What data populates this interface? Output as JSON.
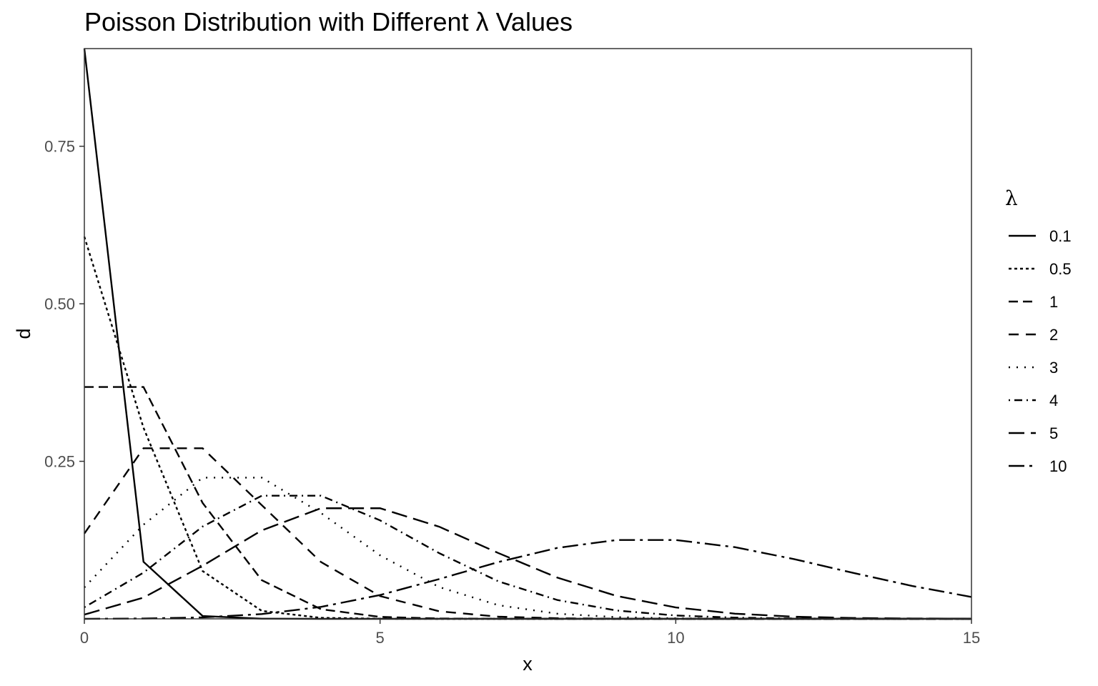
{
  "chart_data": {
    "type": "line",
    "title": "Poisson Distribution with Different λ Values",
    "xlabel": "x",
    "ylabel": "d",
    "xlim": [
      0,
      15
    ],
    "ylim": [
      0,
      0.905
    ],
    "x_ticks": [
      0,
      5,
      10,
      15
    ],
    "x_tick_labels": [
      "0",
      "5",
      "10",
      "15"
    ],
    "y_ticks": [
      0.25,
      0.5,
      0.75
    ],
    "y_tick_labels": [
      "0.25",
      "0.50",
      "0.75"
    ],
    "grid": false,
    "legend": {
      "title": "λ",
      "position": "right"
    },
    "x": [
      0,
      1,
      2,
      3,
      4,
      5,
      6,
      7,
      8,
      9,
      10,
      11,
      12,
      13,
      14,
      15
    ],
    "series": [
      {
        "name": "0.1",
        "linetype": "solid",
        "values": [
          0.9048,
          0.0905,
          0.0045,
          0.0002,
          0.0,
          0.0,
          0.0,
          0.0,
          0.0,
          0.0,
          0.0,
          0.0,
          0.0,
          0.0,
          0.0,
          0.0
        ]
      },
      {
        "name": "0.5",
        "linetype": "dashed",
        "values": [
          0.6065,
          0.3033,
          0.0758,
          0.0126,
          0.0016,
          0.0002,
          0.0,
          0.0,
          0.0,
          0.0,
          0.0,
          0.0,
          0.0,
          0.0,
          0.0,
          0.0
        ]
      },
      {
        "name": "1",
        "linetype": "dotted",
        "values": [
          0.3679,
          0.3679,
          0.1839,
          0.0613,
          0.0153,
          0.0031,
          0.0005,
          0.0001,
          0.0,
          0.0,
          0.0,
          0.0,
          0.0,
          0.0,
          0.0,
          0.0
        ]
      },
      {
        "name": "2",
        "linetype": "dotdash",
        "values": [
          0.1353,
          0.2707,
          0.2707,
          0.1804,
          0.0902,
          0.0361,
          0.012,
          0.0034,
          0.0009,
          0.0002,
          0.0,
          0.0,
          0.0,
          0.0,
          0.0,
          0.0
        ]
      },
      {
        "name": "3",
        "linetype": "longdash",
        "values": [
          0.0498,
          0.1494,
          0.224,
          0.224,
          0.168,
          0.1008,
          0.0504,
          0.0216,
          0.0081,
          0.0027,
          0.0008,
          0.0002,
          0.0001,
          0.0,
          0.0,
          0.0
        ]
      },
      {
        "name": "4",
        "linetype": "twodash",
        "values": [
          0.0183,
          0.0733,
          0.1465,
          0.1954,
          0.1954,
          0.1563,
          0.1042,
          0.0595,
          0.0298,
          0.0132,
          0.0053,
          0.0019,
          0.0006,
          0.0002,
          0.0001,
          0.0
        ]
      },
      {
        "name": "5",
        "linetype": "longdash2",
        "values": [
          0.0067,
          0.0337,
          0.0842,
          0.1404,
          0.1755,
          0.1755,
          0.1462,
          0.1044,
          0.0653,
          0.0363,
          0.0181,
          0.0082,
          0.0034,
          0.0013,
          0.0005,
          0.0002
        ]
      },
      {
        "name": "10",
        "linetype": "dashdot",
        "values": [
          0.0,
          0.0005,
          0.0023,
          0.0076,
          0.0189,
          0.0378,
          0.0631,
          0.0901,
          0.1126,
          0.1251,
          0.1251,
          0.1137,
          0.0948,
          0.0729,
          0.0521,
          0.0347
        ]
      }
    ]
  }
}
